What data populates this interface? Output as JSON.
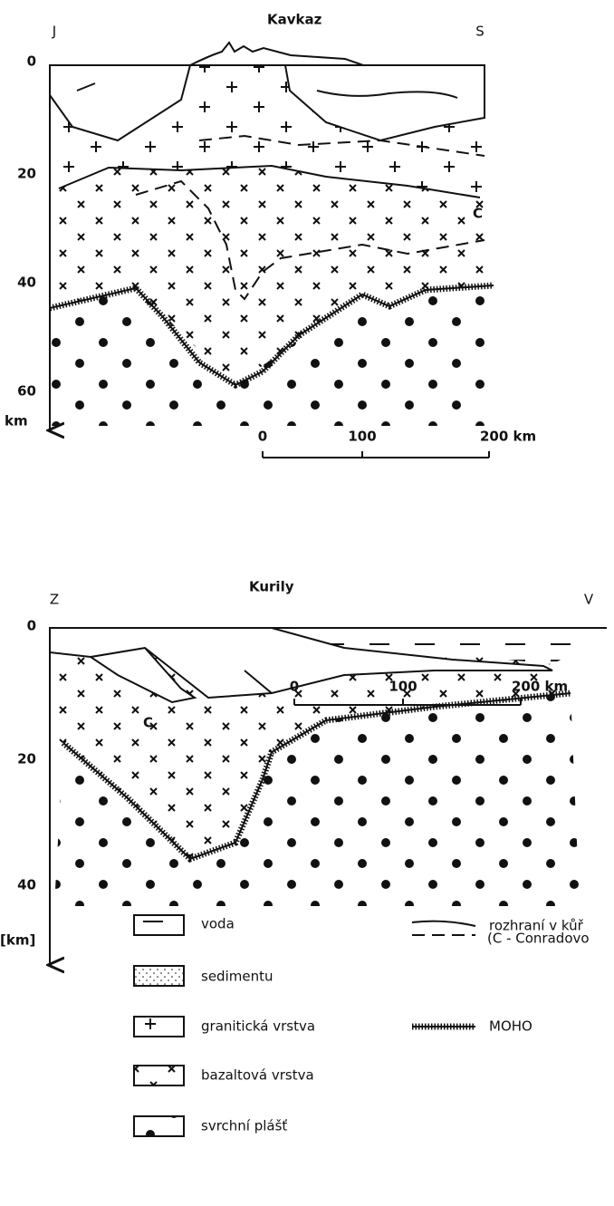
{
  "sections": [
    {
      "title": "Kavkaz",
      "left": "J",
      "right": "S",
      "depths": [
        "0",
        "20",
        "40",
        "60"
      ],
      "unit": "km",
      "scale": [
        "0",
        "100",
        "200 km"
      ],
      "conrad": "C"
    },
    {
      "title": "Kurily",
      "left": "Z",
      "right": "V",
      "depths": [
        "0",
        "20",
        "40"
      ],
      "unit": "[km]",
      "scale": [
        "0",
        "100",
        "200 km"
      ],
      "conrad": "C"
    }
  ],
  "legend": {
    "items": [
      "voda",
      "sedimentu",
      "granitická vrstva",
      "bazaltová vrstva",
      "svrchní plášť"
    ],
    "lines": [
      "rozhraní v kůř",
      "(C - Conradovo",
      "MOHO"
    ]
  }
}
